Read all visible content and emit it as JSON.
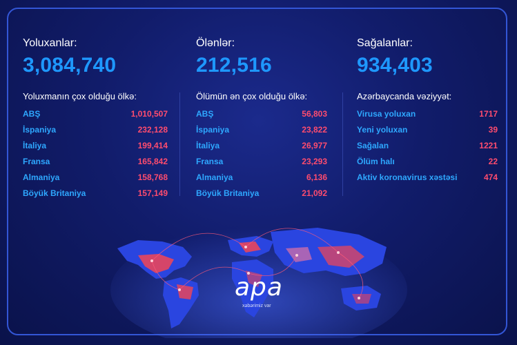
{
  "stats": [
    {
      "label": "Yoluxanlar:",
      "value": "3,084,740"
    },
    {
      "label": "Ölənlər:",
      "value": "212,516"
    },
    {
      "label": "Sağalanlar:",
      "value": "934,403"
    }
  ],
  "infected_list": {
    "title": "Yoluxmanın çox olduğu ölkə:",
    "rows": [
      {
        "name": "ABŞ",
        "value": "1,010,507"
      },
      {
        "name": "İspaniya",
        "value": "232,128"
      },
      {
        "name": "İtaliya",
        "value": "199,414"
      },
      {
        "name": "Fransa",
        "value": "165,842"
      },
      {
        "name": "Almaniya",
        "value": "158,768"
      },
      {
        "name": "Böyük Britaniya",
        "value": "157,149"
      }
    ]
  },
  "deaths_list": {
    "title": "Ölümün ən çox olduğu ölkə:",
    "rows": [
      {
        "name": "ABŞ",
        "value": "56,803"
      },
      {
        "name": "İspaniya",
        "value": "23,822"
      },
      {
        "name": "İtaliya",
        "value": "26,977"
      },
      {
        "name": "Fransa",
        "value": "23,293"
      },
      {
        "name": "Almaniya",
        "value": "6,136"
      },
      {
        "name": "Böyük Britaniya",
        "value": "21,092"
      }
    ]
  },
  "azerbaijan": {
    "title": "Azərbaycanda vəziyyət:",
    "rows": [
      {
        "name": "Virusa yoluxan",
        "value": "1717"
      },
      {
        "name": "Yeni yoluxan",
        "value": "39"
      },
      {
        "name": "Sağalan",
        "value": "1221"
      },
      {
        "name": "Ölüm halı",
        "value": "22"
      },
      {
        "name": "Aktiv koronavirus xəstəsi",
        "value": "474"
      }
    ]
  },
  "logo": {
    "word": "apa",
    "tagline": "xəbərimiz var"
  },
  "colors": {
    "background": "#111c6a",
    "frame": "#3356d6",
    "big_number": "#1e98ff",
    "row_name": "#2ea8ff",
    "row_value": "#ff4c6e",
    "land": "#2a45e0",
    "hotspot": "#e8455c"
  },
  "icons": [
    "world-map-icon"
  ]
}
